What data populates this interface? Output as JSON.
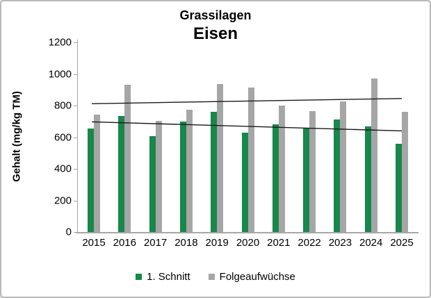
{
  "chart_data": {
    "type": "bar",
    "title": "Grassilagen",
    "subtitle": "Eisen",
    "ylabel": "Gehalt (mg/kg TM)",
    "xlabel": "",
    "ylim": [
      0,
      1200
    ],
    "yticks": [
      0,
      200,
      400,
      600,
      800,
      1000,
      1200
    ],
    "grid": false,
    "legend_position": "bottom",
    "categories": [
      "2015",
      "2016",
      "2017",
      "2018",
      "2019",
      "2020",
      "2021",
      "2022",
      "2023",
      "2024",
      "2025"
    ],
    "series": [
      {
        "name": "1. Schnitt",
        "color": "#17874B",
        "values": [
          655,
          735,
          605,
          700,
          760,
          630,
          680,
          660,
          710,
          670,
          560
        ]
      },
      {
        "name": "Folgeaufwüchse",
        "color": "#A6A6A6",
        "values": [
          745,
          930,
          705,
          775,
          935,
          915,
          800,
          765,
          825,
          970,
          760
        ]
      }
    ],
    "trend_lines": [
      {
        "name": "folgeaufwuechse-trend",
        "start_value": 812,
        "end_value": 845,
        "color": "#1a1a1a"
      },
      {
        "name": "schnitt-trend",
        "start_value": 697,
        "end_value": 640,
        "color": "#1a1a1a"
      }
    ]
  },
  "colors": {
    "axis": "#a6a6a6",
    "frame_border": "#b9b9b9",
    "text": "#000000"
  },
  "legend": {
    "items": [
      {
        "label": "1. Schnitt",
        "color": "#17874B"
      },
      {
        "label": "Folgeaufwüchse",
        "color": "#A6A6A6"
      }
    ]
  }
}
